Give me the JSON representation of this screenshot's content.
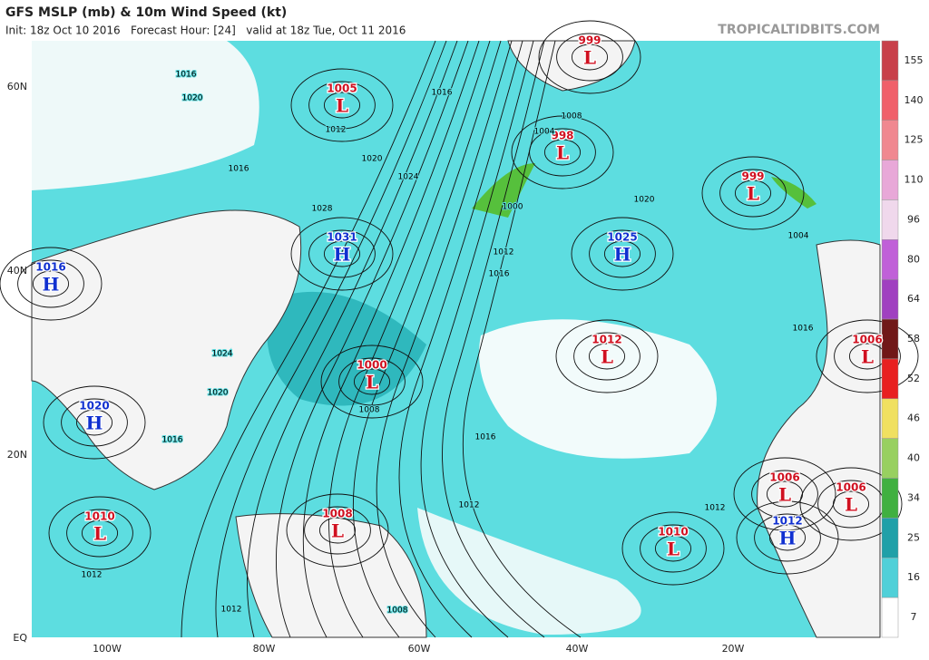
{
  "header": {
    "title": "GFS MSLP (mb) & 10m Wind Speed (kt)",
    "subtitle": "Init: 18z Oct 10 2016   Forecast Hour: [24]   valid at 18z Tue, Oct 11 2016",
    "source": "TROPICALTIDBITS.COM"
  },
  "latitude_labels": [
    "60N",
    "40N",
    "20N",
    "EQ"
  ],
  "longitude_labels": [
    "100W",
    "80W",
    "60W",
    "40W",
    "20W"
  ],
  "colorbar": {
    "ticks": [
      155,
      140,
      125,
      110,
      96,
      80,
      64,
      58,
      52,
      46,
      40,
      34,
      25,
      16,
      7
    ],
    "colors": [
      "#c8404a",
      "#f0606a",
      "#f08890",
      "#e8a8d8",
      "#f0d8ec",
      "#c060d8",
      "#a040c0",
      "#701818",
      "#e82020",
      "#f0e060",
      "#98d060",
      "#40b040",
      "#20a0a8",
      "#50d0d8",
      "#ffffff"
    ]
  },
  "systems": [
    {
      "label": "999",
      "letter": "L"
    },
    {
      "label": "1005",
      "letter": "L"
    },
    {
      "label": "998",
      "letter": "L"
    },
    {
      "label": "999",
      "letter": "L"
    },
    {
      "label": "1031",
      "letter": "H"
    },
    {
      "label": "1016",
      "letter": "H"
    },
    {
      "label": "1025",
      "letter": "H"
    },
    {
      "label": "1012",
      "letter": "L"
    },
    {
      "label": "1000",
      "letter": "L"
    },
    {
      "label": "1020",
      "letter": "H"
    },
    {
      "label": "1006",
      "letter": "L"
    },
    {
      "label": "1010",
      "letter": "L"
    },
    {
      "label": "1008",
      "letter": "L"
    },
    {
      "label": "1006",
      "letter": "L"
    },
    {
      "label": "1006",
      "letter": "L"
    },
    {
      "label": "1012",
      "letter": "H"
    },
    {
      "label": "1010",
      "letter": "L"
    }
  ],
  "isobar_labels": [
    "1016",
    "1020",
    "1012",
    "1016",
    "1024",
    "1028",
    "1020",
    "1016",
    "1008",
    "1004",
    "1000",
    "1012",
    "1016",
    "1020",
    "1004",
    "1016",
    "1024",
    "1020",
    "1008",
    "1016",
    "1016",
    "1012",
    "1012",
    "1008",
    "1012",
    "1012"
  ]
}
